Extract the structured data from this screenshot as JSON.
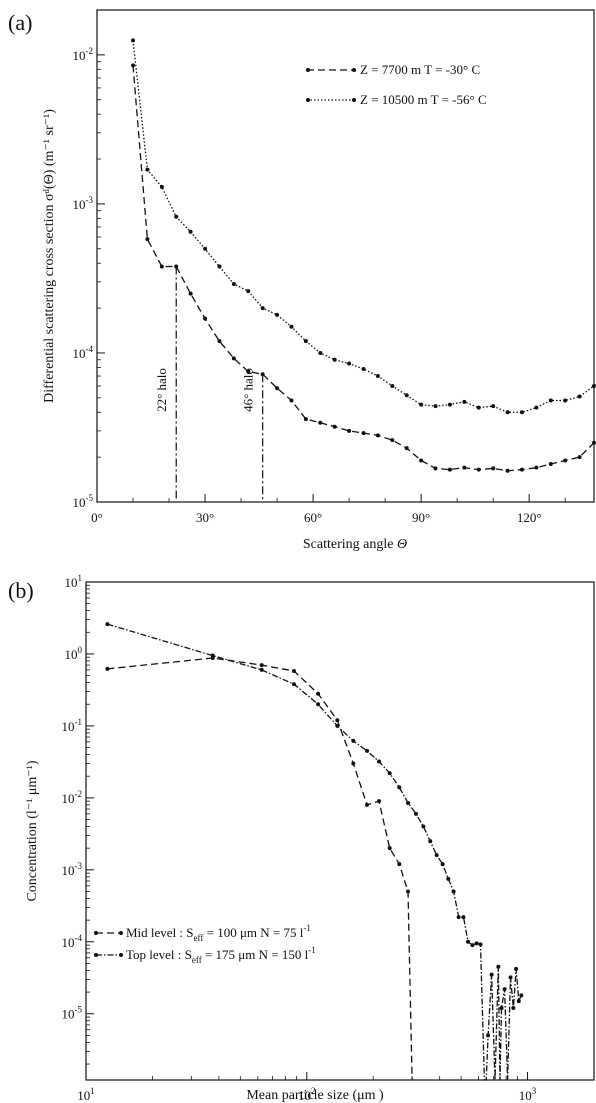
{
  "chart_data": [
    {
      "panel_label": "(a)",
      "type": "line",
      "xlabel": "Scattering angle",
      "xlabel_symbol": "Θ",
      "ylabel": "Differential scattering cross section σᵈ(Θ) (m⁻¹ sr⁻¹)",
      "xlim": [
        0,
        138
      ],
      "ylim": [
        1e-05,
        0.02
      ],
      "yscale": "log",
      "x_ticks": [
        0,
        30,
        60,
        90,
        120
      ],
      "x_tick_labels": [
        "0°",
        "30°",
        "60°",
        "90°",
        "120°"
      ],
      "y_ticks": [
        1e-05,
        0.0001,
        0.001,
        0.01
      ],
      "y_tick_labels": [
        [
          "10",
          "-5"
        ],
        [
          "10",
          "-4"
        ],
        [
          "10",
          "-3"
        ],
        [
          "10",
          "-2"
        ]
      ],
      "legend_position": "top-right",
      "series": [
        {
          "name": "Z =  7700 m   T = -30° C",
          "style": "dashed",
          "x": [
            10,
            14,
            18,
            22,
            26,
            30,
            34,
            38,
            42,
            46,
            50,
            54,
            58,
            62,
            66,
            70,
            74,
            78,
            82,
            86,
            90,
            94,
            98,
            102,
            106,
            110,
            114,
            118,
            122,
            126,
            130,
            134,
            138
          ],
          "y": [
            0.0085,
            0.00058,
            0.00038,
            0.00038,
            0.00025,
            0.00017,
            0.00012,
            9.2e-05,
            7.5e-05,
            7.2e-05,
            5.8e-05,
            4.8e-05,
            3.6e-05,
            3.4e-05,
            3.2e-05,
            3e-05,
            2.9e-05,
            2.8e-05,
            2.6e-05,
            2.3e-05,
            1.9e-05,
            1.68e-05,
            1.65e-05,
            1.7e-05,
            1.65e-05,
            1.68e-05,
            1.62e-05,
            1.65e-05,
            1.7e-05,
            1.8e-05,
            1.9e-05,
            2e-05,
            2.5e-05
          ]
        },
        {
          "name": "Z = 10500 m   T = -56° C",
          "style": "dotted",
          "x": [
            10,
            14,
            18,
            22,
            26,
            30,
            34,
            38,
            42,
            46,
            50,
            54,
            58,
            62,
            66,
            70,
            74,
            78,
            82,
            86,
            90,
            94,
            98,
            102,
            106,
            110,
            114,
            118,
            122,
            126,
            130,
            134,
            138
          ],
          "y": [
            0.0125,
            0.0017,
            0.0013,
            0.00082,
            0.00065,
            0.0005,
            0.00038,
            0.00029,
            0.00026,
            0.0002,
            0.00018,
            0.00015,
            0.00012,
            0.0001,
            9e-05,
            8.5e-05,
            7.8e-05,
            7e-05,
            6e-05,
            5.2e-05,
            4.5e-05,
            4.4e-05,
            4.5e-05,
            4.7e-05,
            4.3e-05,
            4.4e-05,
            4e-05,
            4e-05,
            4.3e-05,
            4.8e-05,
            4.8e-05,
            5.1e-05,
            6e-05
          ]
        }
      ],
      "annotations": [
        {
          "text": "22° halo",
          "x": 22,
          "y_top": 0.00038
        },
        {
          "text": "46° halo",
          "x": 46,
          "y_top": 7.2e-05
        }
      ]
    },
    {
      "panel_label": "(b)",
      "type": "line",
      "xlabel": "Mean particle size (μm )",
      "ylabel": "Concentration (l⁻¹ μm⁻¹)",
      "xscale": "log",
      "yscale": "log",
      "xlim": [
        10,
        2000
      ],
      "ylim": [
        1.2e-06,
        10
      ],
      "x_ticks": [
        10,
        100,
        1000
      ],
      "x_tick_labels": [
        [
          "10",
          "1"
        ],
        [
          "10",
          "2"
        ],
        [
          "10",
          "3"
        ]
      ],
      "y_ticks": [
        10,
        1,
        0.1,
        0.01,
        0.001,
        0.0001,
        1e-05
      ],
      "y_tick_labels": [
        [
          "10",
          "1"
        ],
        [
          "10",
          "0"
        ],
        [
          "10",
          "-1"
        ],
        [
          "10",
          "-2"
        ],
        [
          "10",
          "-3"
        ],
        [
          "10",
          "-4"
        ],
        [
          "10",
          "-5"
        ]
      ],
      "legend_position": "lower-left",
      "series": [
        {
          "name": "Mid level : Seff = 100 μm  N =  75 l⁻¹",
          "legend_parts": [
            "Mid level : S",
            "eff",
            " = 100 μm  N =  75 l",
            "-1"
          ],
          "style": "dashed",
          "x": [
            12.5,
            37.5,
            62.5,
            87.5,
            112.5,
            137.5,
            162.5,
            187.5,
            212.5,
            237.5,
            262.5,
            287.5,
            300
          ],
          "y": [
            0.62,
            0.88,
            0.7,
            0.58,
            0.28,
            0.12,
            0.03,
            0.008,
            0.009,
            0.002,
            0.0012,
            0.0005,
            1.2e-06
          ]
        },
        {
          "name": "Top level : Seff = 175 μm  N = 150 l⁻¹",
          "legend_parts": [
            "Top level : S",
            "eff",
            " = 175 μm  N = 150 l",
            "-1"
          ],
          "style": "dashdot",
          "x": [
            12.5,
            37.5,
            62.5,
            87.5,
            112.5,
            137.5,
            162.5,
            187.5,
            212.5,
            237.5,
            262.5,
            287.5,
            312.5,
            337.5,
            362.5,
            387.5,
            412.5,
            437.5,
            462.5,
            487.5,
            512.5,
            537.5,
            562.5,
            587.5,
            612.5,
            637.5,
            650,
            662.5,
            687.5,
            712.5,
            737.5,
            750,
            762.5,
            787.5,
            812.5,
            837.5,
            862.5,
            887.5,
            912.5,
            937.5
          ],
          "y": [
            2.6,
            0.95,
            0.6,
            0.38,
            0.2,
            0.1,
            0.062,
            0.045,
            0.032,
            0.022,
            0.014,
            0.0085,
            0.006,
            0.004,
            0.0025,
            0.0016,
            0.0012,
            0.00075,
            0.0005,
            0.00022,
            0.00022,
            0.0001,
            9e-05,
            9.5e-05,
            9.2e-05,
            1.2e-06,
            1.2e-06,
            5e-06,
            3.5e-05,
            1.2e-06,
            4.5e-05,
            1.2e-06,
            1.2e-05,
            2.2e-05,
            1.2e-06,
            3.2e-05,
            1.2e-05,
            4.2e-05,
            1.5e-05,
            1.8e-05
          ]
        }
      ]
    }
  ]
}
